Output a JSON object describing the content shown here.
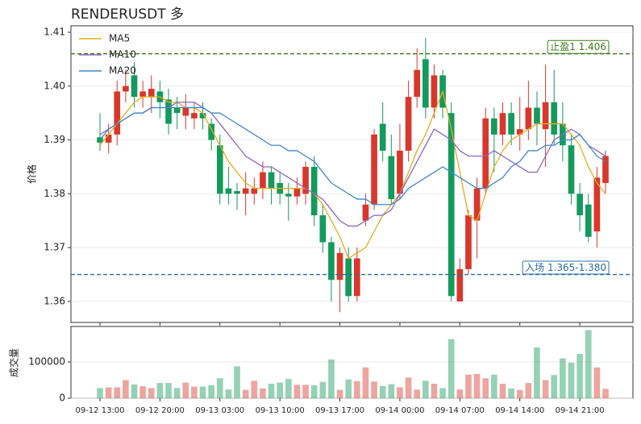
{
  "chart_data": {
    "type": "candlestick",
    "title": "RENDERUSDT 多",
    "y_label": "价格",
    "categories": [
      "09-12 13:00",
      null,
      null,
      null,
      null,
      null,
      null,
      "09-12 20:00",
      null,
      null,
      null,
      null,
      null,
      null,
      "09-13 03:00",
      null,
      null,
      null,
      null,
      null,
      null,
      "09-13 10:00",
      null,
      null,
      null,
      null,
      null,
      null,
      "09-13 17:00",
      null,
      null,
      null,
      null,
      null,
      null,
      "09-14 00:00",
      null,
      null,
      null,
      null,
      null,
      null,
      "09-14 07:00",
      null,
      null,
      null,
      null,
      null,
      null,
      "09-14 14:00",
      null,
      null,
      null,
      null,
      null,
      null,
      "09-14 21:00",
      null,
      null,
      null
    ],
    "open": [
      1.3905,
      1.3895,
      1.391,
      1.399,
      1.402,
      1.398,
      1.398,
      1.399,
      1.3975,
      1.396,
      1.3945,
      1.394,
      1.395,
      1.393,
      1.389,
      1.381,
      1.3805,
      1.38,
      1.38,
      1.381,
      1.384,
      1.382,
      1.38,
      1.3795,
      1.38,
      1.385,
      1.376,
      1.371,
      1.364,
      1.368,
      1.361,
      1.375,
      1.378,
      1.393,
      1.387,
      1.38,
      1.388,
      1.398,
      1.405,
      1.396,
      1.402,
      1.395,
      1.36,
      1.366,
      1.375,
      1.381,
      1.394,
      1.391,
      1.395,
      1.391,
      1.392,
      1.396,
      1.392,
      1.397,
      1.393,
      1.389,
      1.38,
      1.378,
      1.373,
      1.382
    ],
    "high": [
      1.395,
      1.393,
      1.401,
      1.403,
      1.4045,
      1.401,
      1.402,
      1.401,
      1.3995,
      1.398,
      1.3985,
      1.397,
      1.397,
      1.394,
      1.391,
      1.385,
      1.382,
      1.384,
      1.383,
      1.386,
      1.385,
      1.384,
      1.382,
      1.383,
      1.386,
      1.387,
      1.378,
      1.372,
      1.37,
      1.37,
      1.37,
      1.38,
      1.392,
      1.397,
      1.391,
      1.393,
      1.401,
      1.407,
      1.409,
      1.404,
      1.403,
      1.397,
      1.368,
      1.377,
      1.383,
      1.396,
      1.396,
      1.397,
      1.397,
      1.398,
      1.401,
      1.399,
      1.404,
      1.403,
      1.397,
      1.391,
      1.382,
      1.38,
      1.385,
      1.388
    ],
    "low": [
      1.388,
      1.3875,
      1.389,
      1.397,
      1.396,
      1.396,
      1.395,
      1.394,
      1.391,
      1.392,
      1.392,
      1.392,
      1.392,
      1.388,
      1.378,
      1.378,
      1.377,
      1.376,
      1.378,
      1.379,
      1.378,
      1.378,
      1.375,
      1.378,
      1.378,
      1.374,
      1.369,
      1.36,
      1.358,
      1.36,
      1.36,
      1.374,
      1.377,
      1.386,
      1.378,
      1.379,
      1.386,
      1.396,
      1.394,
      1.394,
      1.394,
      1.36,
      1.36,
      1.365,
      1.368,
      1.38,
      1.384,
      1.389,
      1.389,
      1.388,
      1.39,
      1.389,
      1.385,
      1.389,
      1.386,
      1.378,
      1.373,
      1.371,
      1.37,
      1.38
    ],
    "close": [
      1.3895,
      1.391,
      1.399,
      1.4,
      1.398,
      1.399,
      1.3995,
      1.397,
      1.393,
      1.395,
      1.396,
      1.395,
      1.394,
      1.39,
      1.38,
      1.38,
      1.38,
      1.381,
      1.381,
      1.384,
      1.381,
      1.38,
      1.3795,
      1.381,
      1.385,
      1.376,
      1.371,
      1.364,
      1.369,
      1.361,
      1.368,
      1.378,
      1.391,
      1.388,
      1.379,
      1.388,
      1.398,
      1.403,
      1.396,
      1.402,
      1.396,
      1.361,
      1.366,
      1.376,
      1.381,
      1.394,
      1.391,
      1.395,
      1.391,
      1.392,
      1.396,
      1.393,
      1.397,
      1.391,
      1.389,
      1.38,
      1.376,
      1.372,
      1.383,
      1.387
    ],
    "up_color": "#d8372c",
    "down_color": "#139a5c",
    "series": [
      {
        "name": "MA5",
        "color": "#e6ac1a",
        "values": [
          1.389,
          1.391,
          1.393,
          1.395,
          1.397,
          1.398,
          1.398,
          1.398,
          1.397,
          1.397,
          1.396,
          1.396,
          1.395,
          1.392,
          1.389,
          1.386,
          1.384,
          1.382,
          1.381,
          1.381,
          1.381,
          1.381,
          1.381,
          1.381,
          1.381,
          1.38,
          1.378,
          1.375,
          1.372,
          1.368,
          1.369,
          1.37,
          1.373,
          1.376,
          1.378,
          1.38,
          1.384,
          1.388,
          1.391,
          1.395,
          1.399,
          1.392,
          1.384,
          1.376,
          1.375,
          1.38,
          1.385,
          1.388,
          1.39,
          1.391,
          1.392,
          1.393,
          1.393,
          1.393,
          1.393,
          1.391,
          1.389,
          1.385,
          1.382,
          1.38
        ]
      },
      {
        "name": "MA10",
        "color": "#8a67c2",
        "values": [
          1.391,
          1.392,
          1.393,
          1.394,
          1.395,
          1.395,
          1.396,
          1.396,
          1.396,
          1.397,
          1.397,
          1.397,
          1.396,
          1.395,
          1.393,
          1.391,
          1.389,
          1.387,
          1.386,
          1.385,
          1.385,
          1.384,
          1.383,
          1.382,
          1.381,
          1.38,
          1.379,
          1.377,
          1.375,
          1.374,
          1.374,
          1.375,
          1.376,
          1.376,
          1.377,
          1.38,
          1.383,
          1.386,
          1.389,
          1.392,
          1.391,
          1.39,
          1.388,
          1.387,
          1.387,
          1.387,
          1.388,
          1.387,
          1.386,
          1.385,
          1.384,
          1.384,
          1.387,
          1.39,
          1.391,
          1.392,
          1.391,
          1.389,
          1.388,
          1.387
        ]
      },
      {
        "name": "MA20",
        "color": "#3f87cf",
        "values": [
          1.39,
          1.392,
          1.393,
          1.394,
          1.395,
          1.395,
          1.396,
          1.396,
          1.396,
          1.396,
          1.396,
          1.396,
          1.396,
          1.395,
          1.395,
          1.394,
          1.393,
          1.392,
          1.391,
          1.39,
          1.389,
          1.389,
          1.388,
          1.388,
          1.387,
          1.386,
          1.384,
          1.382,
          1.381,
          1.38,
          1.379,
          1.379,
          1.378,
          1.378,
          1.378,
          1.379,
          1.381,
          1.382,
          1.383,
          1.384,
          1.385,
          1.384,
          1.383,
          1.382,
          1.381,
          1.381,
          1.382,
          1.383,
          1.385,
          1.386,
          1.388,
          1.388,
          1.389,
          1.389,
          1.39,
          1.39,
          1.391,
          1.389,
          1.387,
          1.386
        ]
      }
    ],
    "ylim": [
      1.3561,
      1.4112
    ],
    "yticks": [
      1.36,
      1.37,
      1.38,
      1.39,
      {
        "value": 1.4,
        "label": "1.40"
      },
      1.41
    ],
    "grid": true,
    "legend": "upper left",
    "hlines": [
      {
        "value": 1.406,
        "label": "止盈1 1.406",
        "color": "#3c7a1e"
      },
      {
        "value": 1.365,
        "label": "入场 1.365-1.380",
        "color": "#2b6ca3"
      }
    ],
    "volume": {
      "y_label": "成交量",
      "values": [
        28000,
        30000,
        30000,
        50000,
        38000,
        33000,
        28000,
        42000,
        42000,
        28000,
        43000,
        32000,
        32000,
        36000,
        55000,
        24000,
        88000,
        23000,
        48000,
        27000,
        40000,
        43000,
        53000,
        37000,
        37000,
        36000,
        45000,
        107000,
        23000,
        52000,
        47000,
        85000,
        46000,
        34000,
        39000,
        30000,
        57000,
        24000,
        48000,
        40000,
        28000,
        163000,
        24000,
        65000,
        67000,
        55000,
        65000,
        40000,
        27000,
        23000,
        42000,
        140000,
        50000,
        64000,
        110000,
        98000,
        122000,
        188000,
        85000,
        26000
      ],
      "ylim": [
        0,
        198000
      ],
      "yticks": [
        0,
        100000
      ]
    }
  }
}
